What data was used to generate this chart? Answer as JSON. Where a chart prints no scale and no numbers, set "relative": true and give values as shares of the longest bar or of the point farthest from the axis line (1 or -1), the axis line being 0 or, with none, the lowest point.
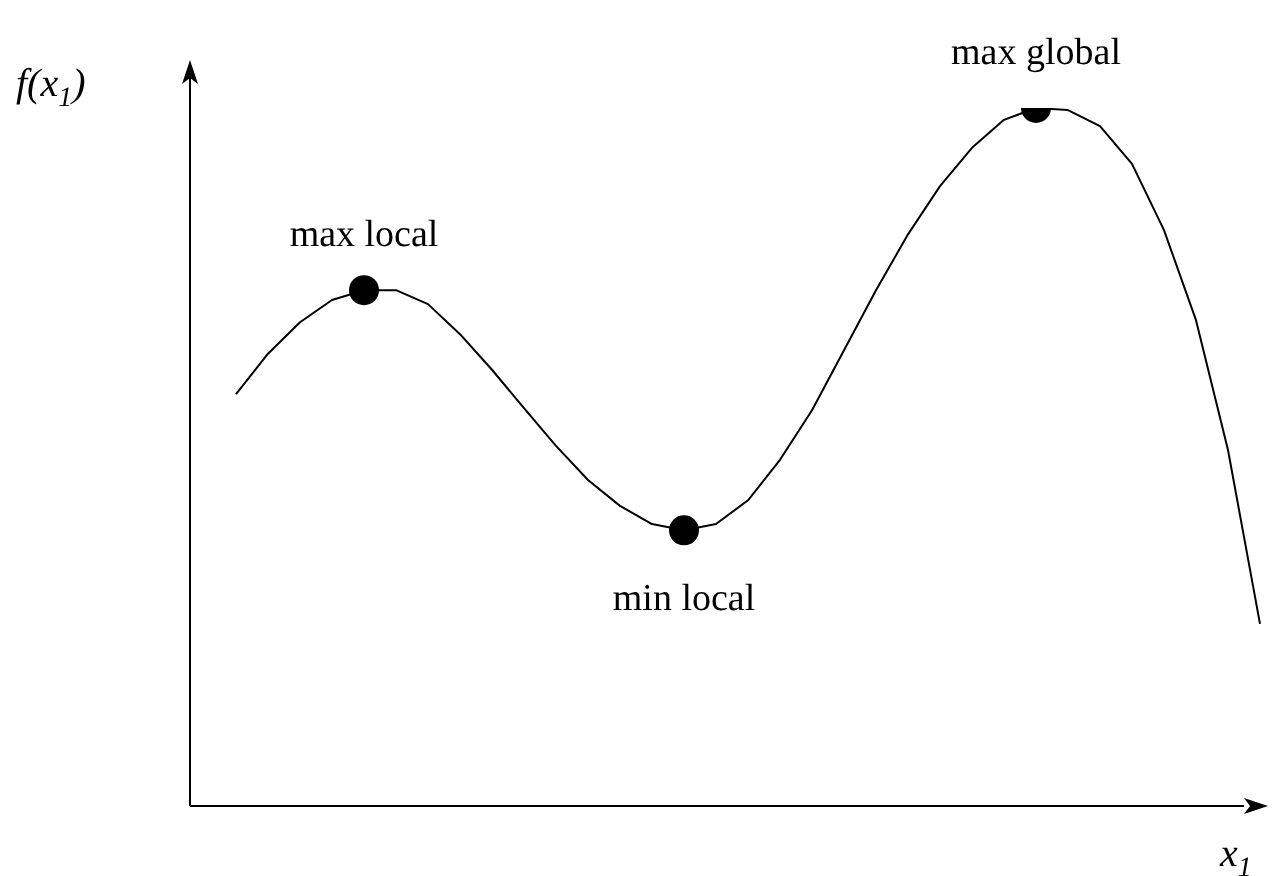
{
  "chart_data": {
    "type": "line",
    "relative": true,
    "xlabel": "x$_{1}$",
    "ylabel": "f(x$_{1}$)",
    "categories": [
      null,
      null,
      null,
      null,
      null,
      null,
      null,
      null,
      null,
      null,
      null,
      null,
      null,
      null,
      null,
      null,
      null,
      null,
      null,
      null,
      null,
      null,
      null,
      null,
      null,
      null,
      null,
      null,
      null,
      null,
      null,
      null,
      null
    ],
    "series": [
      {
        "color": "#000000",
        "values": [
          0.59,
          0.648,
          0.693,
          0.725,
          0.739,
          0.739,
          0.719,
          0.676,
          0.625,
          0.57,
          0.516,
          0.467,
          0.43,
          0.404,
          0.395,
          0.404,
          0.438,
          0.496,
          0.567,
          0.653,
          0.739,
          0.819,
          0.888,
          0.943,
          0.983,
          1,
          0.997,
          0.974,
          0.92,
          0.825,
          0.696,
          0.51,
          0.261
        ]
      }
    ],
    "annotations": [
      {
        "text": "max local",
        "y": 0.739
      },
      {
        "text": "min local",
        "y": 0.395
      },
      {
        "text": "max global",
        "y": 1
      }
    ]
  }
}
